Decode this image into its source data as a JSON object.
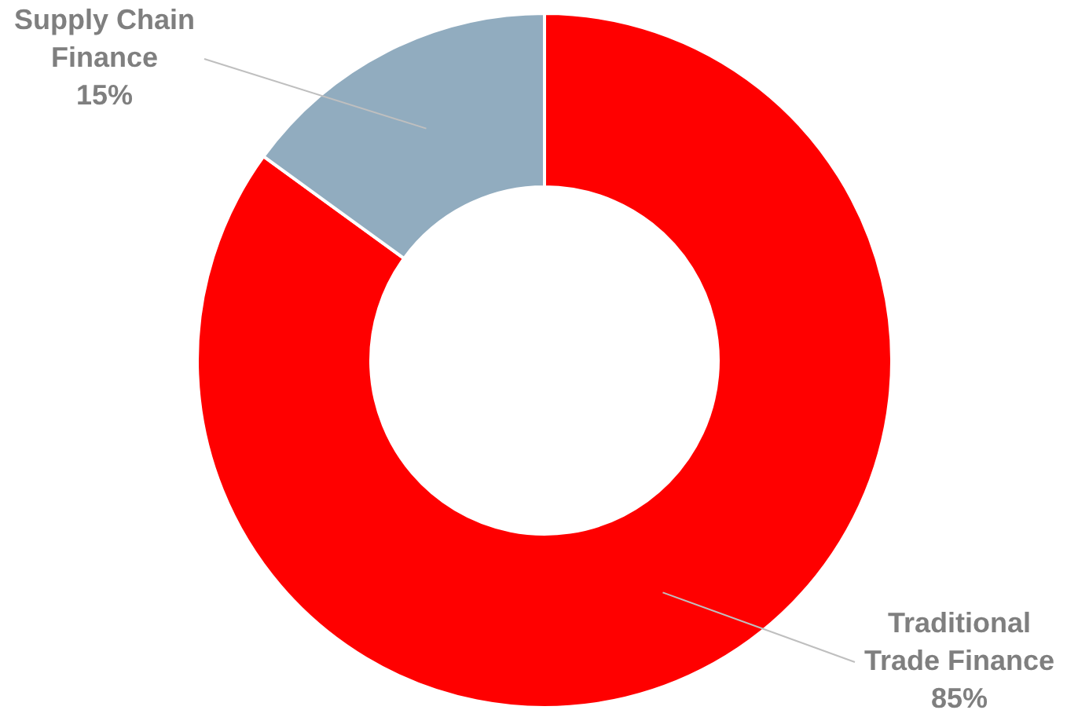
{
  "chart_data": {
    "type": "donut",
    "categories": [
      "Traditional Trade Finance",
      "Supply Chain Finance"
    ],
    "values": [
      85,
      15
    ],
    "value_labels": [
      "85%",
      "15%"
    ],
    "colors": [
      "#ff0000",
      "#91acbf"
    ],
    "legend": false
  }
}
